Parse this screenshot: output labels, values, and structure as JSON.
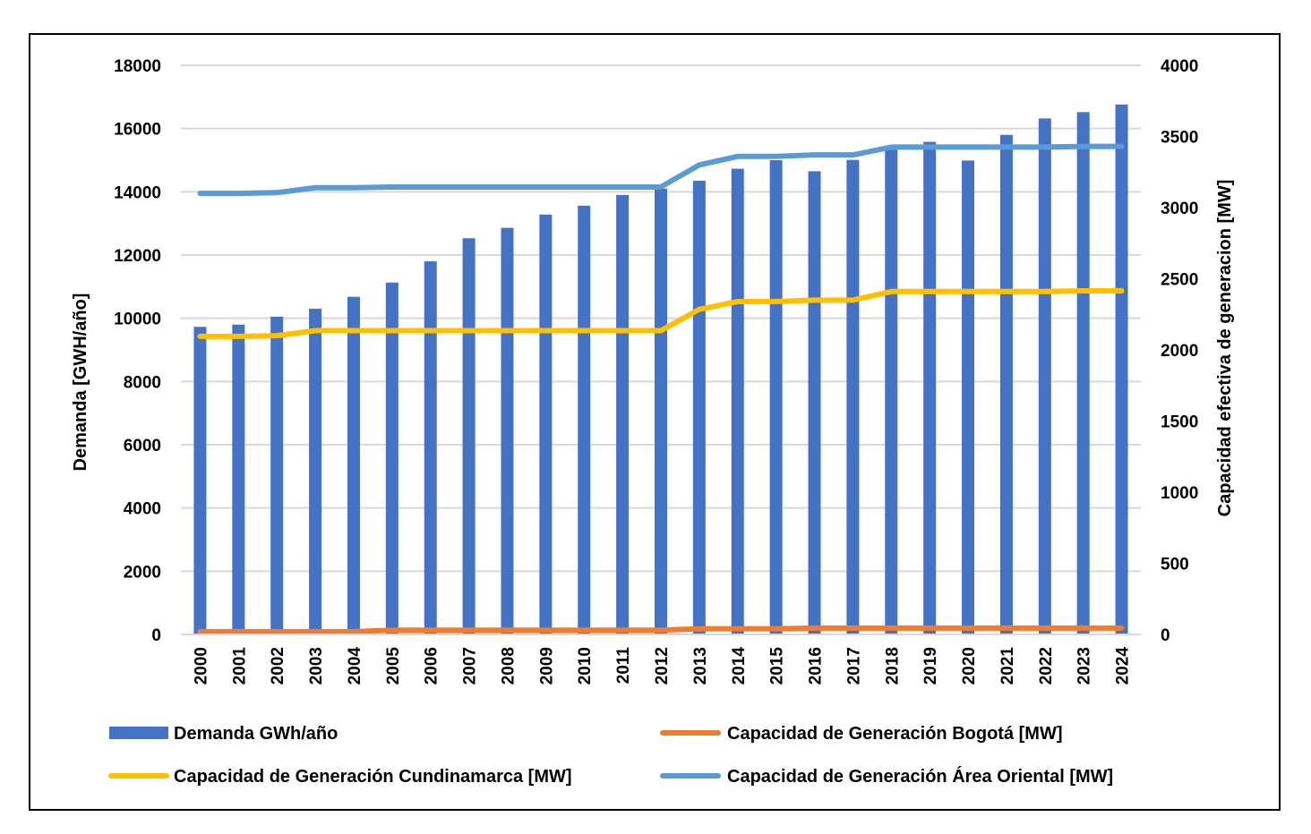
{
  "chart_data": {
    "type": "bar",
    "title": "",
    "categories": [
      "2000",
      "2001",
      "2002",
      "2003",
      "2004",
      "2005",
      "2006",
      "2007",
      "2008",
      "2009",
      "2010",
      "2011",
      "2012",
      "2013",
      "2014",
      "2015",
      "2016",
      "2017",
      "2018",
      "2019",
      "2020",
      "2021",
      "2022",
      "2023",
      "2024"
    ],
    "ylabel": "Demanda [GWH/año]",
    "y2label": "Capacidad efectiva de generacion [MW]",
    "ylim": [
      0,
      18000
    ],
    "y2lim": [
      0,
      4000
    ],
    "yticks": [
      "0",
      "2000",
      "4000",
      "6000",
      "8000",
      "10000",
      "12000",
      "14000",
      "16000",
      "18000"
    ],
    "y2ticks": [
      "0",
      "500",
      "1000",
      "1500",
      "2000",
      "2500",
      "3000",
      "3500",
      "4000"
    ],
    "grid": true,
    "legend_position": "bottom",
    "series": [
      {
        "name": "Demanda GWh/año",
        "kind": "bar",
        "axis": "left",
        "color": "#4472C4",
        "values": [
          9730,
          9800,
          10050,
          10300,
          10680,
          11130,
          11800,
          12530,
          12860,
          13280,
          13560,
          13900,
          14100,
          14350,
          14730,
          15000,
          14650,
          15010,
          15330,
          15580,
          14990,
          15800,
          16320,
          16520,
          16760
        ]
      },
      {
        "name": "Capacidad de Generación Bogotá [MW]",
        "kind": "line",
        "axis": "right",
        "color": "#ED7D31",
        "values": [
          20,
          20,
          20,
          20,
          20,
          30,
          30,
          30,
          30,
          30,
          30,
          30,
          30,
          40,
          40,
          40,
          45,
          45,
          45,
          45,
          45,
          45,
          45,
          45,
          45
        ]
      },
      {
        "name": "Capacidad de Generación Cundinamarca [MW]",
        "kind": "line",
        "axis": "right",
        "color": "#FFC000",
        "values": [
          2095,
          2095,
          2100,
          2135,
          2135,
          2135,
          2135,
          2135,
          2135,
          2135,
          2135,
          2135,
          2135,
          2285,
          2340,
          2340,
          2350,
          2350,
          2410,
          2410,
          2410,
          2410,
          2410,
          2415,
          2415
        ]
      },
      {
        "name": "Capacidad de Generación Área Oriental [MW]",
        "kind": "line",
        "axis": "right",
        "color": "#5B9BD5",
        "values": [
          3100,
          3100,
          3105,
          3140,
          3140,
          3145,
          3145,
          3145,
          3145,
          3145,
          3145,
          3145,
          3145,
          3300,
          3360,
          3360,
          3370,
          3370,
          3425,
          3425,
          3425,
          3425,
          3425,
          3430,
          3430
        ]
      }
    ]
  }
}
